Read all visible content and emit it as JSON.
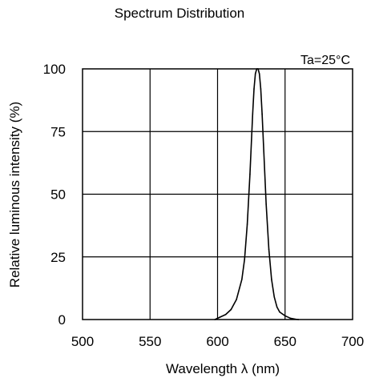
{
  "chart_data": {
    "type": "line",
    "title": "Spectrum Distribution",
    "xlabel": "Wavelength  λ (nm)",
    "ylabel": "Relative luminous intensity  (%)",
    "annotation": "Ta=25°C",
    "xlim": [
      500,
      700
    ],
    "ylim": [
      0,
      100
    ],
    "x_ticks": [
      500,
      550,
      600,
      650,
      700
    ],
    "y_ticks": [
      0,
      25,
      50,
      75,
      100
    ],
    "grid": true,
    "legend": "none",
    "line_color": "#000000",
    "series": [
      {
        "x": [
          598,
          602,
          606,
          610,
          614,
          618,
          620,
          622,
          624,
          626,
          627,
          628,
          629,
          630,
          631,
          632,
          633,
          634,
          636,
          638,
          640,
          642,
          644,
          646,
          650,
          654,
          658,
          660
        ],
        "values": [
          0,
          1,
          2,
          4,
          8,
          16,
          24,
          38,
          58,
          82,
          92,
          98,
          100,
          100,
          98,
          92,
          82,
          70,
          46,
          28,
          16,
          9,
          5,
          3,
          1.5,
          0.5,
          0.1,
          0
        ]
      }
    ]
  }
}
